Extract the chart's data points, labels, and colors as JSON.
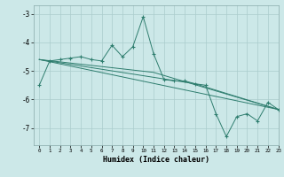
{
  "xlabel": "Humidex (Indice chaleur)",
  "bg_color": "#cce8e8",
  "grid_color": "#aacccc",
  "line_color": "#2e7d6e",
  "xlim": [
    -0.5,
    23
  ],
  "ylim": [
    -7.6,
    -2.7
  ],
  "yticks": [
    -7,
    -6,
    -5,
    -4,
    -3
  ],
  "xticks": [
    0,
    1,
    2,
    3,
    4,
    5,
    6,
    7,
    8,
    9,
    10,
    11,
    12,
    13,
    14,
    15,
    16,
    17,
    18,
    19,
    20,
    21,
    22,
    23
  ],
  "main_x": [
    0,
    1,
    2,
    3,
    4,
    5,
    6,
    7,
    8,
    9,
    10,
    11,
    12,
    13,
    14,
    15,
    16,
    17,
    18,
    19,
    20,
    21,
    22,
    23
  ],
  "main_y": [
    -5.5,
    -4.65,
    -4.6,
    -4.55,
    -4.5,
    -4.6,
    -4.65,
    -4.1,
    -4.5,
    -4.15,
    -3.1,
    -4.4,
    -5.3,
    -5.35,
    -5.35,
    -5.45,
    -5.5,
    -6.5,
    -7.3,
    -6.6,
    -6.5,
    -6.75,
    -6.1,
    -6.35
  ],
  "trend1_x": [
    0,
    23
  ],
  "trend1_y": [
    -4.6,
    -6.35
  ],
  "trend2_x": [
    0,
    15,
    23
  ],
  "trend2_y": [
    -4.6,
    -5.45,
    -6.35
  ],
  "trend3_x": [
    0,
    11,
    23
  ],
  "trend3_y": [
    -4.6,
    -5.05,
    -6.35
  ]
}
